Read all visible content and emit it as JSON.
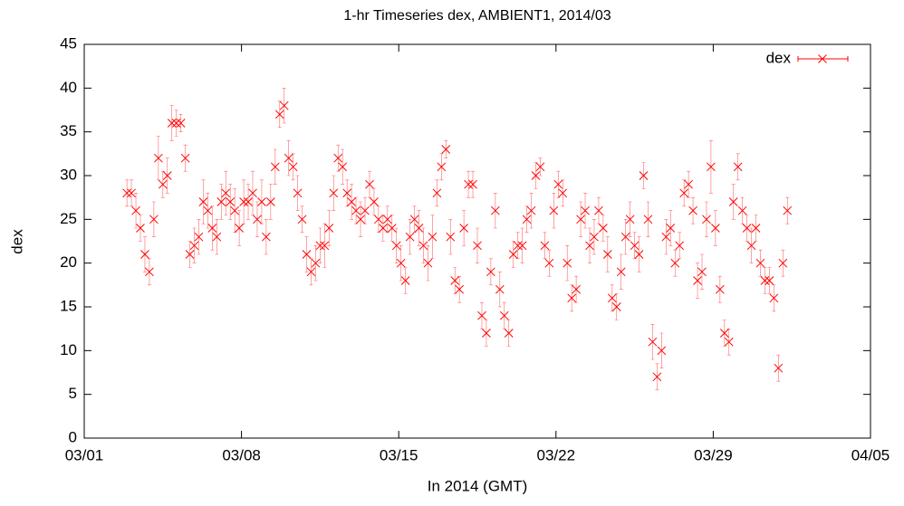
{
  "chart_data": {
    "type": "scatter",
    "title": "1-hr Timeseries dex, AMBIENT1, 2014/03",
    "xlabel": "In 2014 (GMT)",
    "ylabel": "dex",
    "xlim": [
      "2014-03-01T00:00",
      "2014-04-05T00:00"
    ],
    "xticks": [
      {
        "value": "2014-03-01T00:00",
        "label": "03/01"
      },
      {
        "value": "2014-03-08T00:00",
        "label": "03/08"
      },
      {
        "value": "2014-03-15T00:00",
        "label": "03/15"
      },
      {
        "value": "2014-03-22T00:00",
        "label": "03/22"
      },
      {
        "value": "2014-03-29T00:00",
        "label": "03/29"
      },
      {
        "value": "2014-04-05T00:00",
        "label": "04/05"
      }
    ],
    "ylim": [
      0,
      45
    ],
    "yticks": [
      0,
      5,
      10,
      15,
      20,
      25,
      30,
      35,
      40,
      45
    ],
    "legend": "top-right",
    "x": [
      "2014-03-02T21:36",
      "2014-03-03T02:24",
      "2014-03-03T07:12",
      "2014-03-03T12:00",
      "2014-03-03T16:48",
      "2014-03-03T21:36",
      "2014-03-04T02:24",
      "2014-03-04T07:12",
      "2014-03-04T12:00",
      "2014-03-04T16:48",
      "2014-03-04T21:36",
      "2014-03-05T02:24",
      "2014-03-05T07:12",
      "2014-03-05T12:00",
      "2014-03-05T16:48",
      "2014-03-05T21:36",
      "2014-03-06T02:24",
      "2014-03-06T07:12",
      "2014-03-06T12:00",
      "2014-03-06T16:48",
      "2014-03-06T21:36",
      "2014-03-07T02:24",
      "2014-03-07T07:12",
      "2014-03-07T12:00",
      "2014-03-07T16:48",
      "2014-03-07T21:36",
      "2014-03-08T02:24",
      "2014-03-08T07:12",
      "2014-03-08T12:00",
      "2014-03-08T16:48",
      "2014-03-08T21:36",
      "2014-03-09T02:24",
      "2014-03-09T07:12",
      "2014-03-09T12:00",
      "2014-03-09T16:48",
      "2014-03-09T21:36",
      "2014-03-10T02:24",
      "2014-03-10T07:12",
      "2014-03-10T12:00",
      "2014-03-10T16:48",
      "2014-03-10T21:36",
      "2014-03-11T02:24",
      "2014-03-11T07:12",
      "2014-03-11T12:00",
      "2014-03-11T16:48",
      "2014-03-11T21:36",
      "2014-03-12T02:24",
      "2014-03-12T07:12",
      "2014-03-12T12:00",
      "2014-03-12T16:48",
      "2014-03-12T21:36",
      "2014-03-13T02:24",
      "2014-03-13T07:12",
      "2014-03-13T12:00",
      "2014-03-13T16:48",
      "2014-03-13T21:36",
      "2014-03-14T02:24",
      "2014-03-14T07:12",
      "2014-03-14T12:00",
      "2014-03-14T16:48",
      "2014-03-14T21:36",
      "2014-03-15T02:24",
      "2014-03-15T07:12",
      "2014-03-15T12:00",
      "2014-03-15T16:48",
      "2014-03-15T21:36",
      "2014-03-16T02:24",
      "2014-03-16T07:12",
      "2014-03-16T12:00",
      "2014-03-16T16:48",
      "2014-03-16T21:36",
      "2014-03-17T02:24",
      "2014-03-17T07:12",
      "2014-03-17T12:00",
      "2014-03-17T16:48",
      "2014-03-17T21:36",
      "2014-03-18T02:24",
      "2014-03-18T07:12",
      "2014-03-18T12:00",
      "2014-03-18T16:48",
      "2014-03-18T21:36",
      "2014-03-19T02:24",
      "2014-03-19T07:12",
      "2014-03-19T12:00",
      "2014-03-19T16:48",
      "2014-03-19T21:36",
      "2014-03-20T02:24",
      "2014-03-20T07:12",
      "2014-03-20T12:00",
      "2014-03-20T16:48",
      "2014-03-20T21:36",
      "2014-03-21T02:24",
      "2014-03-21T07:12",
      "2014-03-21T12:00",
      "2014-03-21T16:48",
      "2014-03-21T21:36",
      "2014-03-22T02:24",
      "2014-03-22T07:12",
      "2014-03-22T12:00",
      "2014-03-22T16:48",
      "2014-03-22T21:36",
      "2014-03-23T02:24",
      "2014-03-23T07:12",
      "2014-03-23T12:00",
      "2014-03-23T16:48",
      "2014-03-23T21:36",
      "2014-03-24T02:24",
      "2014-03-24T07:12",
      "2014-03-24T12:00",
      "2014-03-24T16:48",
      "2014-03-24T21:36",
      "2014-03-25T02:24",
      "2014-03-25T07:12",
      "2014-03-25T12:00",
      "2014-03-25T16:48",
      "2014-03-25T21:36",
      "2014-03-26T02:24",
      "2014-03-26T07:12",
      "2014-03-26T12:00",
      "2014-03-26T16:48",
      "2014-03-26T21:36",
      "2014-03-27T02:24",
      "2014-03-27T07:12",
      "2014-03-27T12:00",
      "2014-03-27T16:48",
      "2014-03-27T21:36",
      "2014-03-28T02:24",
      "2014-03-28T07:12",
      "2014-03-28T12:00",
      "2014-03-28T16:48",
      "2014-03-28T21:36",
      "2014-03-29T02:24",
      "2014-03-29T07:12",
      "2014-03-29T12:00",
      "2014-03-29T16:48",
      "2014-03-29T21:36",
      "2014-03-30T02:24",
      "2014-03-30T07:12",
      "2014-03-30T12:00",
      "2014-03-30T16:48",
      "2014-03-30T21:36",
      "2014-03-31T02:24",
      "2014-03-31T07:12",
      "2014-03-31T12:00",
      "2014-03-31T16:48",
      "2014-03-31T21:36",
      "2014-04-01T02:24",
      "2014-04-01T07:12"
    ],
    "series": [
      {
        "name": "dex",
        "color": "#ff0000",
        "values": [
          28,
          28,
          26,
          24,
          21,
          19,
          25,
          32,
          29,
          30,
          36,
          36,
          36,
          32,
          21,
          22,
          23,
          27,
          26,
          24,
          23,
          27,
          28,
          27,
          26,
          24,
          27,
          27,
          28,
          25,
          27,
          23,
          27,
          31,
          37,
          38,
          32,
          31,
          28,
          25,
          21,
          19,
          20,
          22,
          22,
          24,
          28,
          32,
          31,
          28,
          27,
          26,
          25,
          26,
          29,
          27,
          25,
          24,
          25,
          24,
          22,
          20,
          18,
          23,
          25,
          24,
          22,
          20,
          23,
          28,
          31,
          33,
          23,
          18,
          17,
          24,
          29,
          29,
          22,
          14,
          12,
          19,
          26,
          17,
          14,
          12,
          21,
          22,
          22,
          25,
          26,
          30,
          31,
          22,
          20,
          26,
          29,
          28,
          20,
          16,
          17,
          25,
          26,
          22,
          23,
          26,
          24,
          21,
          16,
          15,
          19,
          23,
          25,
          22,
          21,
          30,
          25,
          11,
          7,
          10,
          23,
          24,
          20,
          22,
          28,
          29,
          26,
          18,
          19,
          25,
          31,
          24,
          17,
          12,
          11,
          27,
          31,
          26,
          24,
          22,
          24,
          20,
          18,
          18,
          16,
          8,
          20,
          26
        ],
        "errors": [
          1.5,
          1.5,
          2,
          1.5,
          2,
          1.5,
          2,
          2.5,
          1.5,
          2,
          2,
          1.5,
          1,
          1.5,
          1.5,
          2,
          2,
          2.5,
          2,
          2.5,
          2,
          2,
          2.5,
          2,
          2.5,
          2,
          2.5,
          2,
          2.5,
          2,
          2.5,
          2,
          2,
          2,
          1.5,
          2,
          2,
          1.5,
          2,
          1.5,
          2,
          1.5,
          2,
          2,
          2.5,
          2,
          2,
          1.5,
          2,
          1.5,
          2,
          1.5,
          2,
          1.5,
          1.5,
          1.5,
          1.5,
          1.5,
          1.5,
          1.5,
          2,
          2,
          1.5,
          2,
          1.5,
          2,
          2,
          2,
          2.5,
          1.5,
          1.5,
          1,
          2,
          1.5,
          1.5,
          2,
          1.5,
          1.5,
          2,
          1.5,
          1.5,
          1.5,
          2,
          2,
          1.5,
          1.5,
          1.5,
          1.5,
          2,
          1.5,
          2,
          1.5,
          1,
          1.5,
          1.5,
          2,
          1.5,
          1.5,
          2,
          1.5,
          1.5,
          2,
          2,
          2,
          2,
          1.5,
          1.5,
          2,
          1.5,
          1.5,
          2,
          2,
          2,
          1.5,
          2,
          1.5,
          2,
          2,
          1.5,
          2,
          2,
          2,
          1.5,
          1.5,
          1.5,
          1.5,
          1.5,
          2,
          2,
          2,
          3,
          2,
          1.5,
          1.5,
          1.5,
          2,
          1.5,
          1.5,
          1.5,
          2,
          1.5,
          1.5,
          1.5,
          1.5,
          1.5,
          1.5,
          1.5,
          1.5
        ]
      }
    ]
  }
}
